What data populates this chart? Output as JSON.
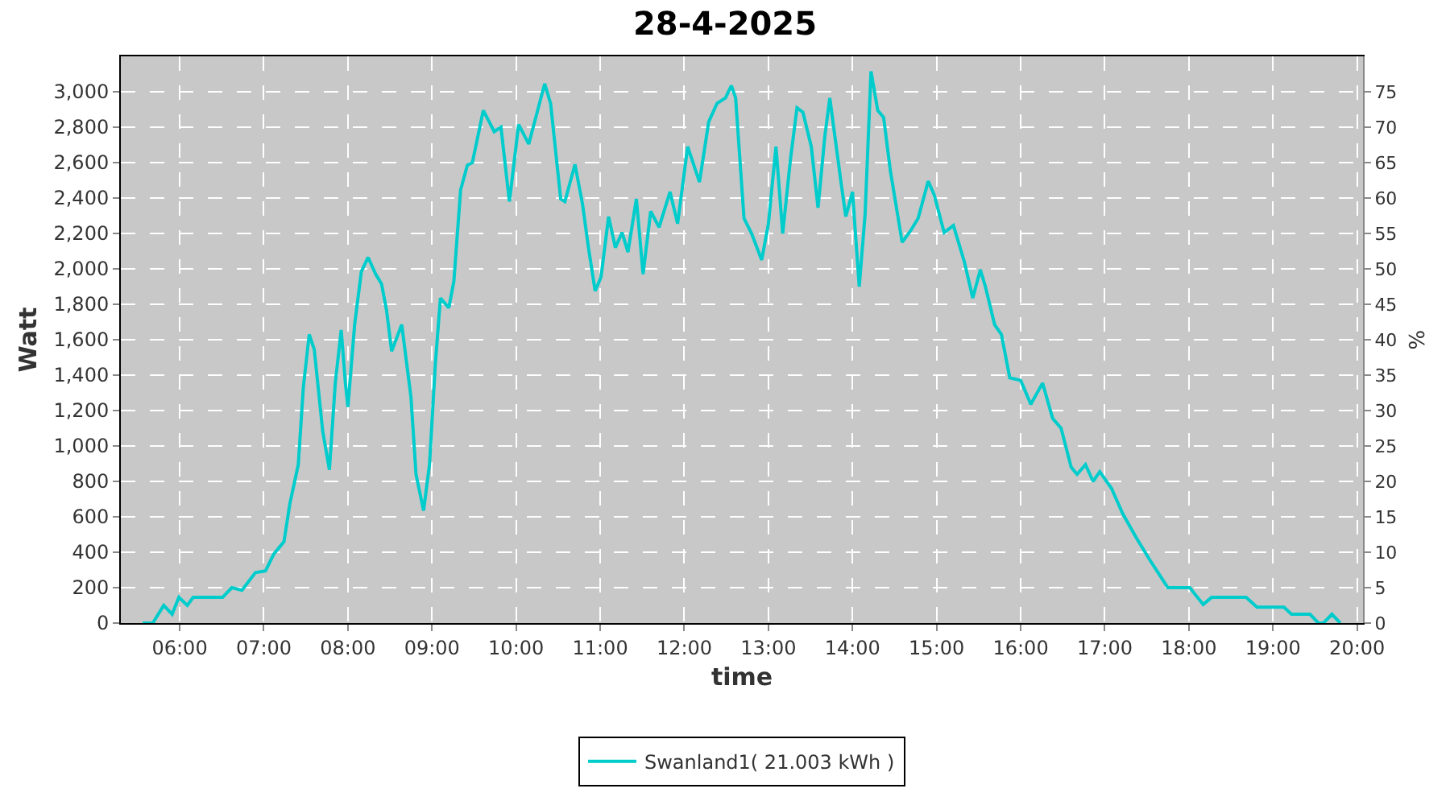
{
  "chart_data": {
    "type": "line",
    "title": "28-4-2025",
    "xlabel": "time",
    "ylabel": "Watt",
    "y2label": "%",
    "xlim": [
      5.3,
      20.07
    ],
    "xticks": [
      {
        "value": 6,
        "label": "06:00"
      },
      {
        "value": 7,
        "label": "07:00"
      },
      {
        "value": 8,
        "label": "08:00"
      },
      {
        "value": 9,
        "label": "09:00"
      },
      {
        "value": 10,
        "label": "10:00"
      },
      {
        "value": 11,
        "label": "11:00"
      },
      {
        "value": 12,
        "label": "12:00"
      },
      {
        "value": 13,
        "label": "13:00"
      },
      {
        "value": 14,
        "label": "14:00"
      },
      {
        "value": 15,
        "label": "15:00"
      },
      {
        "value": 16,
        "label": "16:00"
      },
      {
        "value": 17,
        "label": "17:00"
      },
      {
        "value": 18,
        "label": "18:00"
      },
      {
        "value": 19,
        "label": "19:00"
      },
      {
        "value": 20,
        "label": "20:00"
      }
    ],
    "ylim": [
      0,
      3200
    ],
    "yticks": [
      0,
      200,
      400,
      600,
      800,
      {
        "value": 1000,
        "label": "1,000"
      },
      {
        "value": 1200,
        "label": "1,200"
      },
      {
        "value": 1400,
        "label": "1,400"
      },
      {
        "value": 1600,
        "label": "1,600"
      },
      {
        "value": 1800,
        "label": "1,800"
      },
      {
        "value": 2000,
        "label": "2,000"
      },
      {
        "value": 2200,
        "label": "2,200"
      },
      {
        "value": 2400,
        "label": "2,400"
      },
      {
        "value": 2600,
        "label": "2,600"
      },
      {
        "value": 2800,
        "label": "2,800"
      },
      {
        "value": 3000,
        "label": "3,000"
      }
    ],
    "y2lim": [
      0,
      80
    ],
    "y2ticks": [
      0,
      5,
      10,
      15,
      20,
      25,
      30,
      35,
      40,
      45,
      50,
      55,
      60,
      65,
      70,
      75
    ],
    "grid": true,
    "legend": "bottom",
    "x": [
      5.56,
      5.68,
      5.81,
      5.91,
      5.99,
      6.09,
      6.16,
      6.51,
      6.62,
      6.74,
      6.9,
      7.02,
      7.12,
      7.24,
      7.31,
      7.41,
      7.47,
      7.54,
      7.6,
      7.7,
      7.78,
      7.85,
      7.92,
      7.97,
      8.0,
      8.08,
      8.16,
      8.24,
      8.33,
      8.4,
      8.46,
      8.52,
      8.64,
      8.75,
      8.81,
      8.9,
      8.97,
      9.04,
      9.1,
      9.2,
      9.26,
      9.34,
      9.42,
      9.48,
      9.61,
      9.74,
      9.82,
      9.92,
      10.03,
      10.15,
      10.34,
      10.41,
      10.53,
      10.58,
      10.7,
      10.79,
      10.86,
      10.94,
      11.01,
      11.1,
      11.18,
      11.26,
      11.33,
      11.43,
      11.51,
      11.6,
      11.7,
      11.83,
      11.92,
      12.04,
      12.18,
      12.29,
      12.39,
      12.49,
      12.56,
      12.61,
      12.71,
      12.8,
      12.92,
      13.0,
      13.09,
      13.17,
      13.26,
      13.34,
      13.41,
      13.51,
      13.59,
      13.67,
      13.73,
      13.86,
      13.92,
      14.0,
      14.08,
      14.15,
      14.22,
      14.3,
      14.37,
      14.45,
      14.59,
      14.69,
      14.78,
      14.9,
      14.97,
      15.09,
      15.2,
      15.33,
      15.43,
      15.52,
      15.58,
      15.69,
      15.77,
      15.87,
      16.0,
      16.12,
      16.26,
      16.38,
      16.48,
      16.6,
      16.67,
      16.77,
      16.86,
      16.94,
      17.08,
      17.21,
      17.37,
      17.53,
      17.66,
      17.75,
      18.01,
      18.17,
      18.27,
      18.68,
      18.81,
      19.13,
      19.22,
      19.44,
      19.54,
      19.6,
      19.7,
      19.8
    ],
    "series": [
      {
        "name": "Swanland1( 21.003 kWh )",
        "color": "#00cccc",
        "values": [
          0,
          0,
          100,
          50,
          145,
          100,
          145,
          145,
          200,
          185,
          285,
          295,
          390,
          460,
          675,
          895,
          1330,
          1630,
          1545,
          1085,
          865,
          1355,
          1655,
          1355,
          1220,
          1685,
          1985,
          2065,
          1970,
          1915,
          1765,
          1535,
          1685,
          1275,
          840,
          635,
          895,
          1465,
          1835,
          1780,
          1930,
          2445,
          2585,
          2600,
          2895,
          2775,
          2800,
          2380,
          2815,
          2705,
          3045,
          2935,
          2395,
          2380,
          2590,
          2365,
          2120,
          1875,
          1955,
          2295,
          2120,
          2205,
          2095,
          2395,
          1970,
          2325,
          2235,
          2435,
          2255,
          2690,
          2490,
          2830,
          2935,
          2965,
          3035,
          2965,
          2285,
          2200,
          2050,
          2255,
          2690,
          2200,
          2610,
          2910,
          2885,
          2690,
          2345,
          2745,
          2965,
          2500,
          2295,
          2435,
          1900,
          2310,
          3115,
          2895,
          2855,
          2555,
          2150,
          2215,
          2285,
          2495,
          2420,
          2205,
          2245,
          2040,
          1835,
          1995,
          1900,
          1685,
          1630,
          1385,
          1370,
          1235,
          1355,
          1155,
          1100,
          880,
          840,
          895,
          800,
          855,
          760,
          620,
          485,
          360,
          265,
          200,
          200,
          105,
          145,
          145,
          90,
          90,
          50,
          50,
          0,
          0,
          50,
          0
        ]
      }
    ]
  }
}
